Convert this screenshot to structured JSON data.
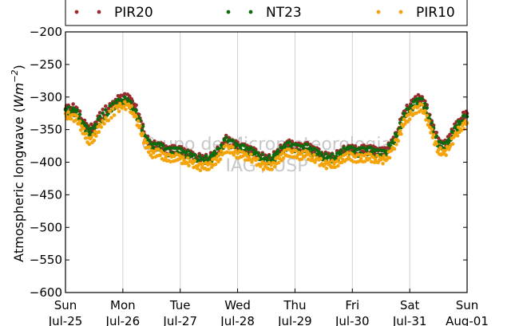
{
  "chart_data": {
    "type": "scatter",
    "title": "",
    "ylabel": "Atmospheric longwave (Wm⁻²)",
    "ylabel_parts": {
      "text": "Atmospheric longwave (",
      "unit": "Wm",
      "exp": "−2",
      "close": ")"
    },
    "xlabel": "",
    "ylim": [
      -600,
      -200
    ],
    "yticks": [
      -200,
      -250,
      -300,
      -350,
      -400,
      -450,
      -500,
      -550,
      -600
    ],
    "ytick_labels": [
      "−200",
      "−250",
      "−300",
      "−350",
      "−400",
      "−450",
      "−500",
      "−550",
      "−600"
    ],
    "xlim": [
      "2010-07-25",
      "2010-08-01"
    ],
    "xticks": [
      {
        "day": "Sun",
        "date": "Jul-25"
      },
      {
        "day": "Mon",
        "date": "Jul-26"
      },
      {
        "day": "Tue",
        "date": "Jul-27"
      },
      {
        "day": "Wed",
        "date": "Jul-28"
      },
      {
        "day": "Thu",
        "date": "Jul-29"
      },
      {
        "day": "Fri",
        "date": "Jul-30"
      },
      {
        "day": "Sat",
        "date": "Jul-31"
      },
      {
        "day": "Sun",
        "date": "Aug-01"
      }
    ],
    "grid": "vertical",
    "legend_position": "top",
    "watermark": [
      "Grupo de Micrometeorologia",
      "IAG / USP"
    ],
    "series": [
      {
        "name": "PIR20",
        "color": "#9b2c2c",
        "points": [
          [
            0.0,
            -318
          ],
          [
            0.1,
            -315
          ],
          [
            0.2,
            -320
          ],
          [
            0.3,
            -335
          ],
          [
            0.4,
            -350
          ],
          [
            0.5,
            -345
          ],
          [
            0.6,
            -330
          ],
          [
            0.75,
            -315
          ],
          [
            0.9,
            -305
          ],
          [
            1.0,
            -300
          ],
          [
            1.1,
            -302
          ],
          [
            1.2,
            -310
          ],
          [
            1.3,
            -335
          ],
          [
            1.4,
            -360
          ],
          [
            1.5,
            -375
          ],
          [
            1.6,
            -372
          ],
          [
            1.7,
            -378
          ],
          [
            1.8,
            -382
          ],
          [
            1.9,
            -380
          ],
          [
            2.0,
            -382
          ],
          [
            2.1,
            -385
          ],
          [
            2.2,
            -390
          ],
          [
            2.3,
            -392
          ],
          [
            2.4,
            -395
          ],
          [
            2.5,
            -392
          ],
          [
            2.6,
            -388
          ],
          [
            2.7,
            -378
          ],
          [
            2.8,
            -365
          ],
          [
            2.9,
            -370
          ],
          [
            3.0,
            -375
          ],
          [
            3.1,
            -378
          ],
          [
            3.2,
            -380
          ],
          [
            3.3,
            -385
          ],
          [
            3.4,
            -390
          ],
          [
            3.5,
            -395
          ],
          [
            3.6,
            -392
          ],
          [
            3.7,
            -385
          ],
          [
            3.8,
            -375
          ],
          [
            3.9,
            -372
          ],
          [
            4.0,
            -375
          ],
          [
            4.1,
            -378
          ],
          [
            4.2,
            -375
          ],
          [
            4.3,
            -380
          ],
          [
            4.4,
            -385
          ],
          [
            4.5,
            -390
          ],
          [
            4.6,
            -392
          ],
          [
            4.7,
            -390
          ],
          [
            4.8,
            -385
          ],
          [
            4.9,
            -378
          ],
          [
            5.0,
            -380
          ],
          [
            5.1,
            -382
          ],
          [
            5.2,
            -380
          ],
          [
            5.3,
            -380
          ],
          [
            5.4,
            -382
          ],
          [
            5.5,
            -385
          ],
          [
            5.6,
            -380
          ],
          [
            5.7,
            -370
          ],
          [
            5.8,
            -348
          ],
          [
            5.9,
            -325
          ],
          [
            6.0,
            -312
          ],
          [
            6.1,
            -305
          ],
          [
            6.2,
            -300
          ],
          [
            6.3,
            -318
          ],
          [
            6.4,
            -345
          ],
          [
            6.5,
            -368
          ],
          [
            6.6,
            -375
          ],
          [
            6.7,
            -360
          ],
          [
            6.8,
            -345
          ],
          [
            6.9,
            -332
          ],
          [
            7.0,
            -325
          ]
        ]
      },
      {
        "name": "NT23",
        "color": "#0d6b0d",
        "points": [
          [
            0.0,
            -322
          ],
          [
            0.1,
            -320
          ],
          [
            0.2,
            -325
          ],
          [
            0.3,
            -340
          ],
          [
            0.4,
            -355
          ],
          [
            0.5,
            -350
          ],
          [
            0.6,
            -335
          ],
          [
            0.75,
            -320
          ],
          [
            0.9,
            -310
          ],
          [
            1.0,
            -305
          ],
          [
            1.1,
            -308
          ],
          [
            1.2,
            -318
          ],
          [
            1.3,
            -340
          ],
          [
            1.4,
            -362
          ],
          [
            1.5,
            -378
          ],
          [
            1.6,
            -375
          ],
          [
            1.7,
            -380
          ],
          [
            1.8,
            -385
          ],
          [
            1.9,
            -382
          ],
          [
            2.0,
            -385
          ],
          [
            2.1,
            -387
          ],
          [
            2.2,
            -392
          ],
          [
            2.3,
            -395
          ],
          [
            2.4,
            -398
          ],
          [
            2.5,
            -395
          ],
          [
            2.6,
            -390
          ],
          [
            2.7,
            -380
          ],
          [
            2.8,
            -368
          ],
          [
            2.9,
            -372
          ],
          [
            3.0,
            -378
          ],
          [
            3.1,
            -380
          ],
          [
            3.2,
            -382
          ],
          [
            3.3,
            -388
          ],
          [
            3.4,
            -392
          ],
          [
            3.5,
            -398
          ],
          [
            3.6,
            -395
          ],
          [
            3.7,
            -388
          ],
          [
            3.8,
            -378
          ],
          [
            3.9,
            -375
          ],
          [
            4.0,
            -378
          ],
          [
            4.1,
            -380
          ],
          [
            4.2,
            -378
          ],
          [
            4.3,
            -383
          ],
          [
            4.4,
            -388
          ],
          [
            4.5,
            -392
          ],
          [
            4.6,
            -395
          ],
          [
            4.7,
            -392
          ],
          [
            4.8,
            -388
          ],
          [
            4.9,
            -380
          ],
          [
            5.0,
            -383
          ],
          [
            5.1,
            -385
          ],
          [
            5.2,
            -383
          ],
          [
            5.3,
            -383
          ],
          [
            5.4,
            -385
          ],
          [
            5.5,
            -388
          ],
          [
            5.6,
            -383
          ],
          [
            5.7,
            -372
          ],
          [
            5.8,
            -352
          ],
          [
            5.9,
            -330
          ],
          [
            6.0,
            -318
          ],
          [
            6.1,
            -310
          ],
          [
            6.2,
            -305
          ],
          [
            6.3,
            -322
          ],
          [
            6.4,
            -350
          ],
          [
            6.5,
            -372
          ],
          [
            6.6,
            -378
          ],
          [
            6.7,
            -364
          ],
          [
            6.8,
            -349
          ],
          [
            6.9,
            -336
          ],
          [
            7.0,
            -330
          ]
        ]
      },
      {
        "name": "PIR10",
        "color": "#f5a30a",
        "points": [
          [
            0.0,
            -330
          ],
          [
            0.1,
            -328
          ],
          [
            0.2,
            -335
          ],
          [
            0.3,
            -350
          ],
          [
            0.4,
            -368
          ],
          [
            0.5,
            -362
          ],
          [
            0.6,
            -345
          ],
          [
            0.75,
            -330
          ],
          [
            0.9,
            -318
          ],
          [
            1.0,
            -312
          ],
          [
            1.1,
            -315
          ],
          [
            1.2,
            -325
          ],
          [
            1.3,
            -350
          ],
          [
            1.4,
            -372
          ],
          [
            1.5,
            -388
          ],
          [
            1.6,
            -385
          ],
          [
            1.7,
            -390
          ],
          [
            1.8,
            -395
          ],
          [
            1.9,
            -392
          ],
          [
            2.0,
            -395
          ],
          [
            2.1,
            -398
          ],
          [
            2.2,
            -402
          ],
          [
            2.3,
            -405
          ],
          [
            2.4,
            -408
          ],
          [
            2.5,
            -405
          ],
          [
            2.6,
            -400
          ],
          [
            2.7,
            -390
          ],
          [
            2.8,
            -378
          ],
          [
            2.9,
            -382
          ],
          [
            3.0,
            -388
          ],
          [
            3.1,
            -390
          ],
          [
            3.2,
            -392
          ],
          [
            3.3,
            -398
          ],
          [
            3.4,
            -402
          ],
          [
            3.5,
            -408
          ],
          [
            3.6,
            -405
          ],
          [
            3.7,
            -398
          ],
          [
            3.8,
            -388
          ],
          [
            3.9,
            -385
          ],
          [
            4.0,
            -388
          ],
          [
            4.1,
            -390
          ],
          [
            4.2,
            -388
          ],
          [
            4.3,
            -393
          ],
          [
            4.4,
            -398
          ],
          [
            4.5,
            -402
          ],
          [
            4.6,
            -405
          ],
          [
            4.7,
            -402
          ],
          [
            4.8,
            -398
          ],
          [
            4.9,
            -390
          ],
          [
            5.0,
            -393
          ],
          [
            5.1,
            -395
          ],
          [
            5.2,
            -393
          ],
          [
            5.3,
            -393
          ],
          [
            5.4,
            -395
          ],
          [
            5.5,
            -398
          ],
          [
            5.6,
            -393
          ],
          [
            5.7,
            -382
          ],
          [
            5.8,
            -362
          ],
          [
            5.9,
            -340
          ],
          [
            6.0,
            -328
          ],
          [
            6.1,
            -320
          ],
          [
            6.2,
            -315
          ],
          [
            6.3,
            -332
          ],
          [
            6.4,
            -360
          ],
          [
            6.5,
            -382
          ],
          [
            6.6,
            -388
          ],
          [
            6.7,
            -374
          ],
          [
            6.8,
            -359
          ],
          [
            6.9,
            -346
          ],
          [
            7.0,
            -340
          ]
        ]
      }
    ]
  }
}
